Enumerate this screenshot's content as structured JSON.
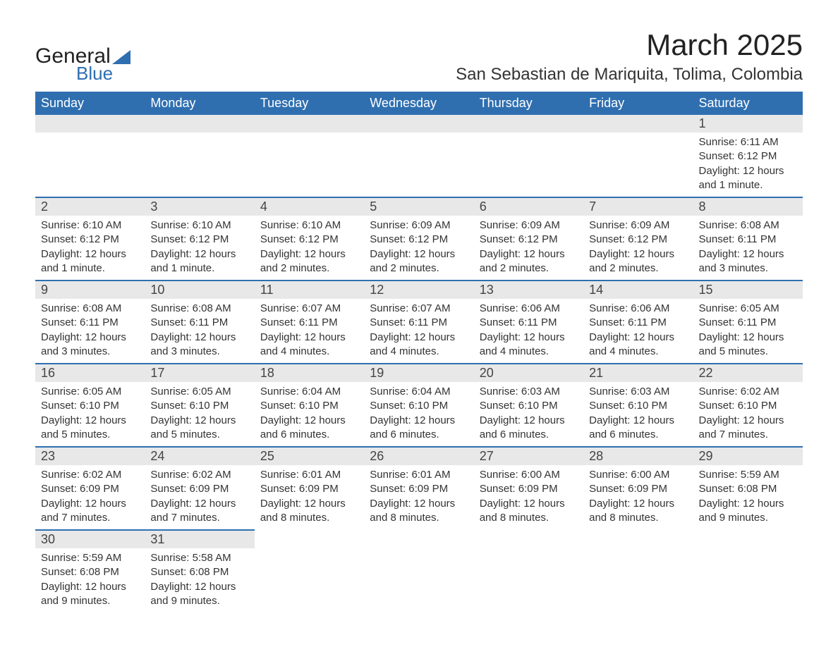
{
  "logo": {
    "text1": "General",
    "text2": "Blue"
  },
  "title": "March 2025",
  "subtitle": "San Sebastian de Mariquita, Tolima, Colombia",
  "header_bg": "#2f6fb0",
  "header_fg": "#ffffff",
  "daynum_bg": "#e8e8e8",
  "row_divider_color": "#2f6fb0",
  "body_bg": "#ffffff",
  "text_color": "#333333",
  "font_family": "Arial",
  "title_fontsize": 42,
  "subtitle_fontsize": 24,
  "header_fontsize": 18,
  "cell_fontsize": 15,
  "day_names": [
    "Sunday",
    "Monday",
    "Tuesday",
    "Wednesday",
    "Thursday",
    "Friday",
    "Saturday"
  ],
  "weeks": [
    [
      null,
      null,
      null,
      null,
      null,
      null,
      {
        "n": "1",
        "sunrise": "6:11 AM",
        "sunset": "6:12 PM",
        "daylight": "12 hours and 1 minute."
      }
    ],
    [
      {
        "n": "2",
        "sunrise": "6:10 AM",
        "sunset": "6:12 PM",
        "daylight": "12 hours and 1 minute."
      },
      {
        "n": "3",
        "sunrise": "6:10 AM",
        "sunset": "6:12 PM",
        "daylight": "12 hours and 1 minute."
      },
      {
        "n": "4",
        "sunrise": "6:10 AM",
        "sunset": "6:12 PM",
        "daylight": "12 hours and 2 minutes."
      },
      {
        "n": "5",
        "sunrise": "6:09 AM",
        "sunset": "6:12 PM",
        "daylight": "12 hours and 2 minutes."
      },
      {
        "n": "6",
        "sunrise": "6:09 AM",
        "sunset": "6:12 PM",
        "daylight": "12 hours and 2 minutes."
      },
      {
        "n": "7",
        "sunrise": "6:09 AM",
        "sunset": "6:12 PM",
        "daylight": "12 hours and 2 minutes."
      },
      {
        "n": "8",
        "sunrise": "6:08 AM",
        "sunset": "6:11 PM",
        "daylight": "12 hours and 3 minutes."
      }
    ],
    [
      {
        "n": "9",
        "sunrise": "6:08 AM",
        "sunset": "6:11 PM",
        "daylight": "12 hours and 3 minutes."
      },
      {
        "n": "10",
        "sunrise": "6:08 AM",
        "sunset": "6:11 PM",
        "daylight": "12 hours and 3 minutes."
      },
      {
        "n": "11",
        "sunrise": "6:07 AM",
        "sunset": "6:11 PM",
        "daylight": "12 hours and 4 minutes."
      },
      {
        "n": "12",
        "sunrise": "6:07 AM",
        "sunset": "6:11 PM",
        "daylight": "12 hours and 4 minutes."
      },
      {
        "n": "13",
        "sunrise": "6:06 AM",
        "sunset": "6:11 PM",
        "daylight": "12 hours and 4 minutes."
      },
      {
        "n": "14",
        "sunrise": "6:06 AM",
        "sunset": "6:11 PM",
        "daylight": "12 hours and 4 minutes."
      },
      {
        "n": "15",
        "sunrise": "6:05 AM",
        "sunset": "6:11 PM",
        "daylight": "12 hours and 5 minutes."
      }
    ],
    [
      {
        "n": "16",
        "sunrise": "6:05 AM",
        "sunset": "6:10 PM",
        "daylight": "12 hours and 5 minutes."
      },
      {
        "n": "17",
        "sunrise": "6:05 AM",
        "sunset": "6:10 PM",
        "daylight": "12 hours and 5 minutes."
      },
      {
        "n": "18",
        "sunrise": "6:04 AM",
        "sunset": "6:10 PM",
        "daylight": "12 hours and 6 minutes."
      },
      {
        "n": "19",
        "sunrise": "6:04 AM",
        "sunset": "6:10 PM",
        "daylight": "12 hours and 6 minutes."
      },
      {
        "n": "20",
        "sunrise": "6:03 AM",
        "sunset": "6:10 PM",
        "daylight": "12 hours and 6 minutes."
      },
      {
        "n": "21",
        "sunrise": "6:03 AM",
        "sunset": "6:10 PM",
        "daylight": "12 hours and 6 minutes."
      },
      {
        "n": "22",
        "sunrise": "6:02 AM",
        "sunset": "6:10 PM",
        "daylight": "12 hours and 7 minutes."
      }
    ],
    [
      {
        "n": "23",
        "sunrise": "6:02 AM",
        "sunset": "6:09 PM",
        "daylight": "12 hours and 7 minutes."
      },
      {
        "n": "24",
        "sunrise": "6:02 AM",
        "sunset": "6:09 PM",
        "daylight": "12 hours and 7 minutes."
      },
      {
        "n": "25",
        "sunrise": "6:01 AM",
        "sunset": "6:09 PM",
        "daylight": "12 hours and 8 minutes."
      },
      {
        "n": "26",
        "sunrise": "6:01 AM",
        "sunset": "6:09 PM",
        "daylight": "12 hours and 8 minutes."
      },
      {
        "n": "27",
        "sunrise": "6:00 AM",
        "sunset": "6:09 PM",
        "daylight": "12 hours and 8 minutes."
      },
      {
        "n": "28",
        "sunrise": "6:00 AM",
        "sunset": "6:09 PM",
        "daylight": "12 hours and 8 minutes."
      },
      {
        "n": "29",
        "sunrise": "5:59 AM",
        "sunset": "6:08 PM",
        "daylight": "12 hours and 9 minutes."
      }
    ],
    [
      {
        "n": "30",
        "sunrise": "5:59 AM",
        "sunset": "6:08 PM",
        "daylight": "12 hours and 9 minutes."
      },
      {
        "n": "31",
        "sunrise": "5:58 AM",
        "sunset": "6:08 PM",
        "daylight": "12 hours and 9 minutes."
      },
      null,
      null,
      null,
      null,
      null
    ]
  ],
  "labels": {
    "sunrise": "Sunrise:",
    "sunset": "Sunset:",
    "daylight": "Daylight:"
  }
}
